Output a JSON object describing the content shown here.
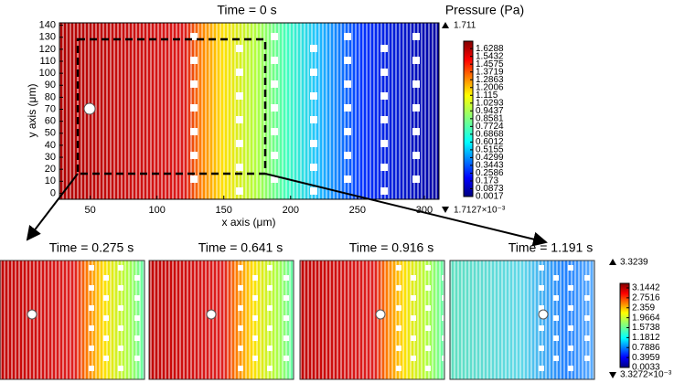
{
  "chart_data": {
    "type": "contour",
    "title": "Time = 0 s",
    "xlabel": "x axis (μm)",
    "ylabel": "y axis (μm)",
    "xlim": [
      27,
      311
    ],
    "ylim": [
      -5,
      142
    ],
    "xticks": [
      50,
      100,
      150,
      200,
      250,
      300
    ],
    "yticks": [
      0,
      10,
      20,
      30,
      40,
      50,
      60,
      70,
      80,
      90,
      100,
      110,
      120,
      130,
      140
    ],
    "colorbar": {
      "title": "Pressure (Pa)",
      "max": 1.711,
      "min": {
        "value": 0.0017127,
        "label": "1.7127×10⁻³"
      },
      "ticks": [
        1.6288,
        1.5432,
        1.4575,
        1.3719,
        1.2863,
        1.2006,
        1.115,
        1.0293,
        0.9437,
        0.8581,
        0.7724,
        0.6868,
        0.6012,
        0.5155,
        0.4299,
        0.3443,
        0.2586,
        0.173,
        0.0873,
        0.0017
      ]
    },
    "insets": [
      {
        "title": "Time = 0.275 s"
      },
      {
        "title": "Time = 0.641 s"
      },
      {
        "title": "Time = 0.916 s"
      },
      {
        "title": "Time = 1.191 s"
      }
    ],
    "inset_colorbar": {
      "max": 3.3239,
      "min": {
        "value": 0.0033272,
        "label": "3.3272×10⁻³"
      },
      "ticks": [
        3.1442,
        2.7516,
        2.359,
        1.9664,
        1.5738,
        1.1812,
        0.7886,
        0.3959,
        0.0033
      ]
    }
  }
}
